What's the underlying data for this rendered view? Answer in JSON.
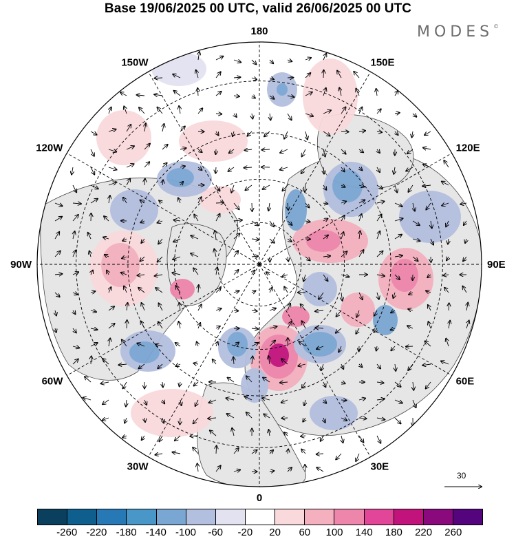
{
  "header": {
    "title": "Base 19/06/2025 00 UTC, valid 26/06/2025 00 UTC",
    "brand": "MODES",
    "brand_mark": "©"
  },
  "map": {
    "projection": "north-polar-stereographic",
    "longitude_labels": [
      {
        "lon": 180,
        "text": "180"
      },
      {
        "lon": 150,
        "text": "150E"
      },
      {
        "lon": 120,
        "text": "120E"
      },
      {
        "lon": 90,
        "text": "90E"
      },
      {
        "lon": 60,
        "text": "60E"
      },
      {
        "lon": 30,
        "text": "30E"
      },
      {
        "lon": 0,
        "text": "0"
      },
      {
        "lon": -30,
        "text": "30W"
      },
      {
        "lon": -60,
        "text": "60W"
      },
      {
        "lon": -90,
        "text": "90W"
      },
      {
        "lon": -120,
        "text": "120W"
      },
      {
        "lon": -150,
        "text": "150W"
      }
    ],
    "latitude_circles": [
      30,
      45,
      60,
      75
    ],
    "fill_colors": {
      "ocean_land_background": "#ececec",
      "coastline": "#3a3a3a"
    }
  },
  "vector_reference": {
    "label": "30"
  },
  "colorbar": {
    "colors": [
      "#0a3f5e",
      "#0f5f8e",
      "#2779b6",
      "#4996c8",
      "#7aa6d3",
      "#b3bfdf",
      "#e2e2f1",
      "#ffffff",
      "#f9d9dc",
      "#f4b0be",
      "#ee85ab",
      "#e14698",
      "#c2137d",
      "#8a0a7e",
      "#54047d"
    ],
    "tick_labels": [
      "-260",
      "-220",
      "-180",
      "-140",
      "-100",
      "-60",
      "-20",
      "20",
      "60",
      "100",
      "140",
      "180",
      "220",
      "260"
    ]
  }
}
